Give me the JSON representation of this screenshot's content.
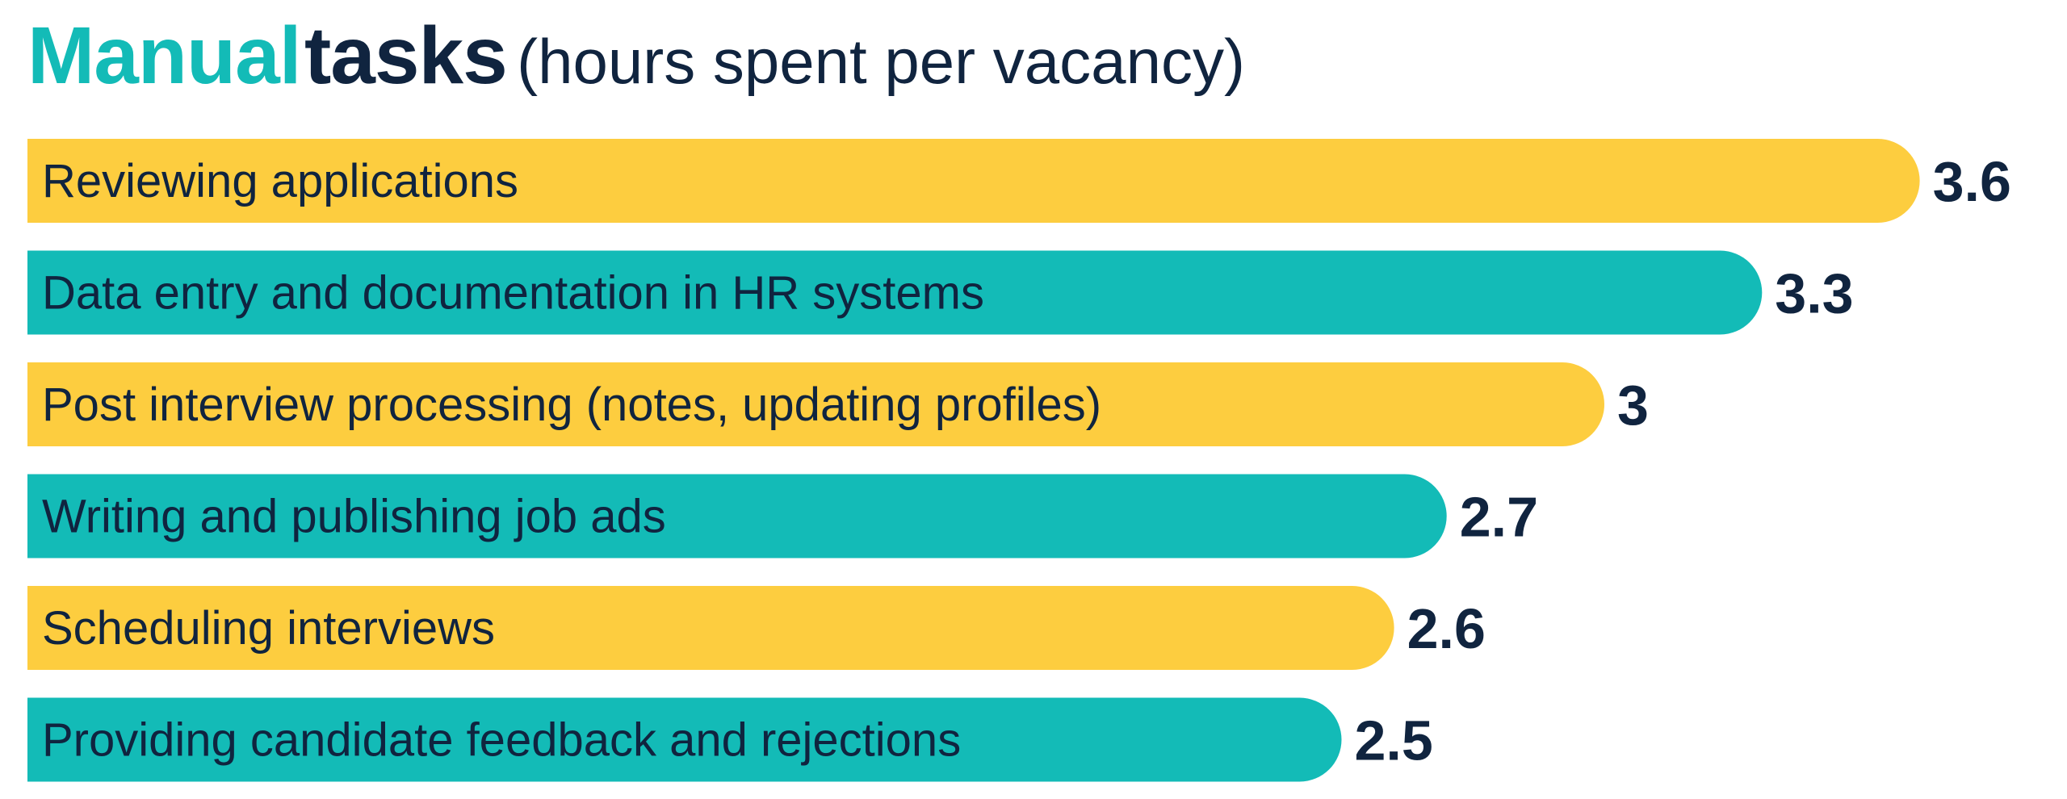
{
  "title": {
    "part1": "Manual",
    "part2": "tasks",
    "part3": "(hours spent per vacancy)"
  },
  "colors": {
    "accent_teal": "#13BBB7",
    "accent_yellow": "#FDCD3F",
    "text_dark": "#10243F"
  },
  "chart_data": {
    "type": "bar",
    "orientation": "horizontal",
    "categories": [
      "Reviewing applications",
      "Data entry and documentation in HR systems",
      "Post interview processing (notes, updating profiles)",
      "Writing and publishing job ads",
      "Scheduling interviews",
      "Providing candidate feedback and rejections"
    ],
    "values": [
      3.6,
      3.3,
      3,
      2.7,
      2.6,
      2.5
    ],
    "value_labels": [
      "3.6",
      "3.3",
      "3",
      "2.7",
      "2.6",
      "2.5"
    ],
    "bar_colors": [
      "#FDCD3F",
      "#13BBB7",
      "#FDCD3F",
      "#13BBB7",
      "#FDCD3F",
      "#13BBB7"
    ],
    "grid": false,
    "legend": "none"
  }
}
